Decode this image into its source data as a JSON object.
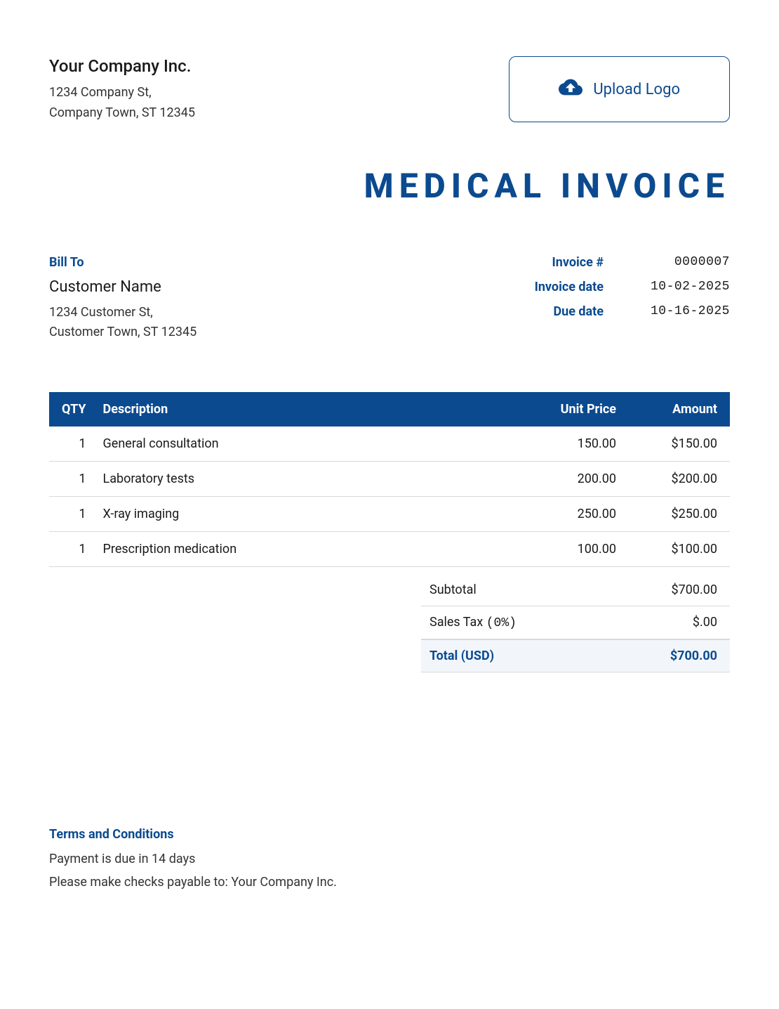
{
  "colors": {
    "accent": "#0b4a8f",
    "header_bg": "#0b4a8f",
    "total_bg": "#f2f6fb",
    "border": "#d8d8d8",
    "text": "#1a1a1a",
    "page_bg": "#ffffff"
  },
  "company": {
    "name": "Your Company Inc.",
    "address_line1": "1234 Company St,",
    "address_line2": "Company Town, ST 12345"
  },
  "upload_logo_label": "Upload Logo",
  "invoice_title": "MEDICAL INVOICE",
  "bill_to": {
    "heading": "Bill To",
    "customer_name": "Customer Name",
    "address_line1": "1234 Customer St,",
    "address_line2": "Customer Town, ST 12345"
  },
  "meta": {
    "invoice_number_label": "Invoice #",
    "invoice_number": "0000007",
    "invoice_date_label": "Invoice date",
    "invoice_date": "10-02-2025",
    "due_date_label": "Due date",
    "due_date": "10-16-2025"
  },
  "table": {
    "columns": {
      "qty": "QTY",
      "description": "Description",
      "unit_price": "Unit Price",
      "amount": "Amount"
    },
    "rows": [
      {
        "qty": "1",
        "description": "General consultation",
        "unit_price": "150.00",
        "amount": "$150.00"
      },
      {
        "qty": "1",
        "description": "Laboratory tests",
        "unit_price": "200.00",
        "amount": "$200.00"
      },
      {
        "qty": "1",
        "description": "X-ray imaging",
        "unit_price": "250.00",
        "amount": "$250.00"
      },
      {
        "qty": "1",
        "description": "Prescription medication",
        "unit_price": "100.00",
        "amount": "$100.00"
      }
    ]
  },
  "totals": {
    "subtotal_label": "Subtotal",
    "subtotal_value": "$700.00",
    "tax_label_prefix": "Sales Tax",
    "tax_pct": "(0%)",
    "tax_value": "$.00",
    "grand_label": "Total (USD)",
    "grand_value": "$700.00"
  },
  "terms": {
    "heading": "Terms and Conditions",
    "line1": "Payment is due in 14 days",
    "line2": "Please make checks payable to: Your Company Inc."
  }
}
